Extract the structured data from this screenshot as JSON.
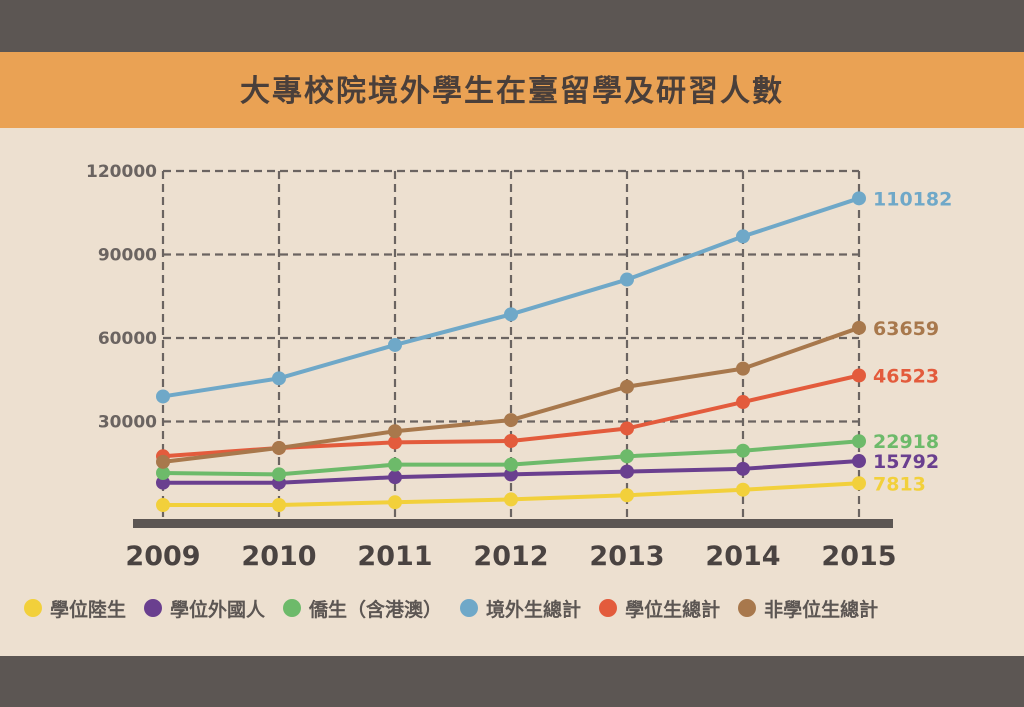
{
  "header": {
    "title": "大專校院境外學生在臺留學及研習人數"
  },
  "chart_data": {
    "type": "line",
    "title": "大專校院境外學生在臺留學及研習人數",
    "categories": [
      "2009",
      "2010",
      "2011",
      "2012",
      "2013",
      "2014",
      "2015"
    ],
    "ylim": [
      0,
      120000
    ],
    "yticks": [
      "30000",
      "60000",
      "90000",
      "120000"
    ],
    "ytick_values": [
      30000,
      60000,
      90000,
      120000
    ],
    "grid": true,
    "legend_position": "bottom",
    "series": [
      {
        "name": "學位陸生",
        "color": "#f2d03b",
        "end_label": "7813",
        "values": [
          0,
          0,
          1000,
          2000,
          3500,
          5500,
          7813
        ]
      },
      {
        "name": "學位外國人",
        "color": "#6a3f8f",
        "end_label": "15792",
        "values": [
          8000,
          8000,
          10000,
          11000,
          12000,
          13000,
          15792
        ]
      },
      {
        "name": "僑生（含港澳）",
        "color": "#6dba6a",
        "end_label": "22918",
        "values": [
          11500,
          11000,
          14500,
          14500,
          17500,
          19500,
          22918
        ]
      },
      {
        "name": "境外生總計",
        "color": "#6fa8c8",
        "end_label": "110182",
        "values": [
          39000,
          45500,
          57500,
          68500,
          81000,
          96500,
          110182
        ]
      },
      {
        "name": "學位生總計",
        "color": "#e35b3c",
        "end_label": "46523",
        "values": [
          17500,
          20500,
          22500,
          23000,
          27500,
          37000,
          46523
        ]
      },
      {
        "name": "非學位生總計",
        "color": "#a8784c",
        "end_label": "63659",
        "values": [
          15500,
          20500,
          26500,
          30500,
          42500,
          49000,
          63659
        ]
      }
    ]
  }
}
